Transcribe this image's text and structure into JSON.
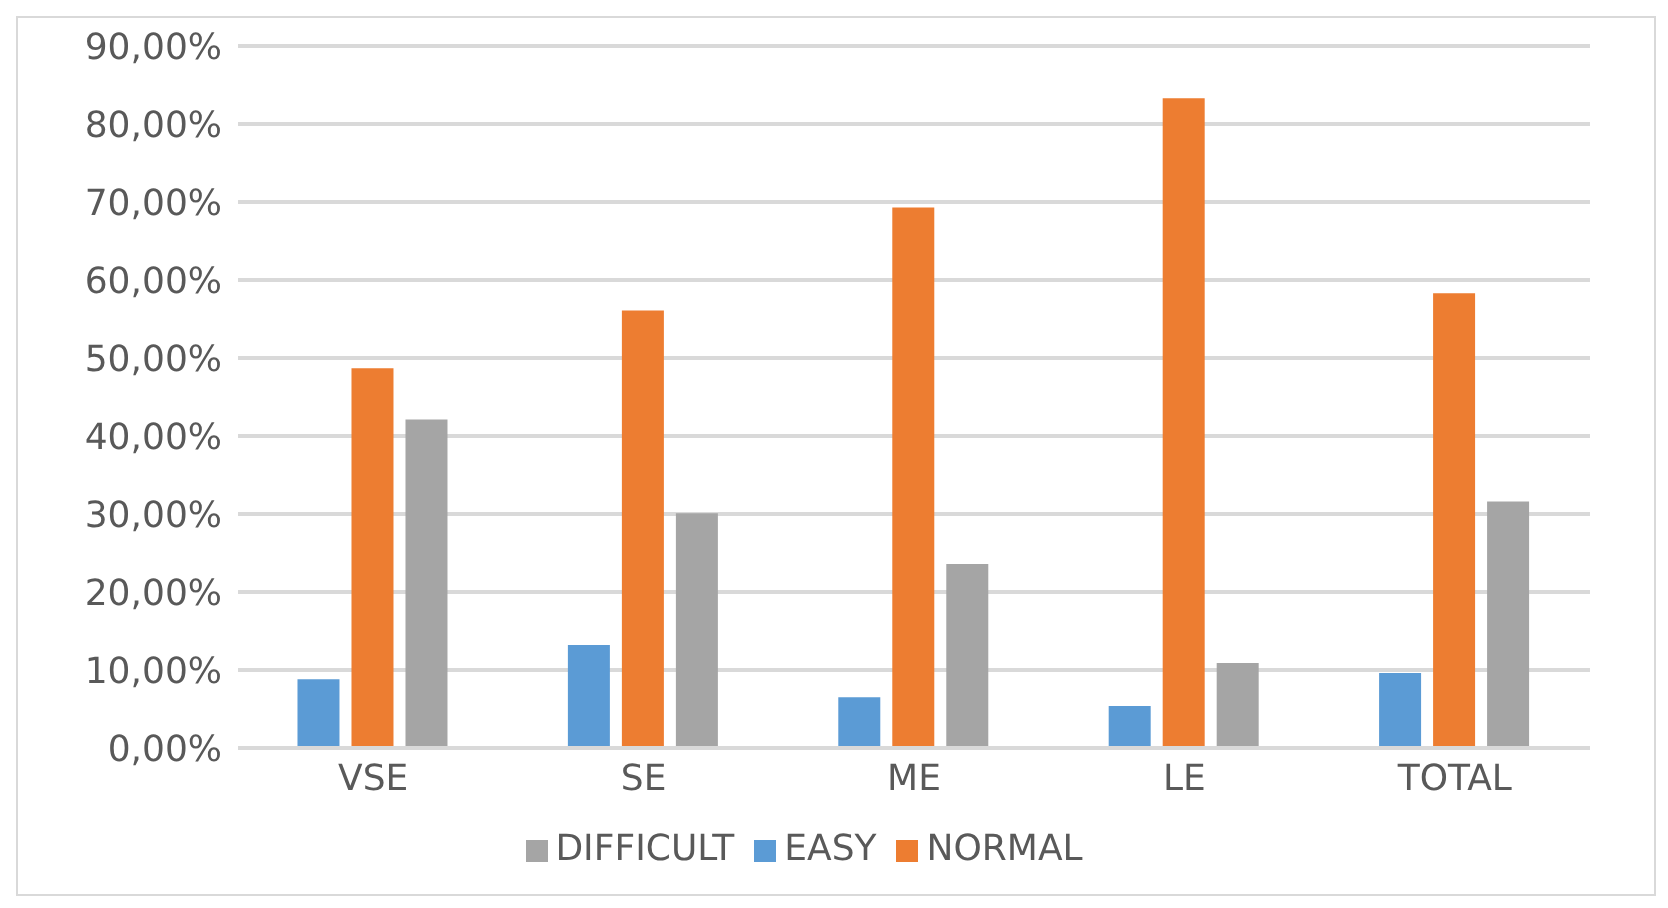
{
  "chart_data": {
    "type": "bar",
    "categories": [
      "VSE",
      "SE",
      "ME",
      "LE",
      "TOTAL"
    ],
    "series": [
      {
        "name": "EASY",
        "color": "#5b9bd5",
        "values": [
          8.8,
          13.2,
          6.5,
          5.4,
          9.6
        ]
      },
      {
        "name": "NORMAL",
        "color": "#ed7d31",
        "values": [
          48.7,
          56.1,
          69.3,
          83.3,
          58.3
        ]
      },
      {
        "name": "DIFFICULT",
        "color": "#a5a5a5",
        "values": [
          42.1,
          30.1,
          23.6,
          10.9,
          31.6
        ]
      }
    ],
    "ylim": [
      0,
      90
    ],
    "yticks": [
      {
        "value": 0,
        "label": "0,00%"
      },
      {
        "value": 10,
        "label": "10,00%"
      },
      {
        "value": 20,
        "label": "20,00%"
      },
      {
        "value": 30,
        "label": "30,00%"
      },
      {
        "value": 40,
        "label": "40,00%"
      },
      {
        "value": 50,
        "label": "50,00%"
      },
      {
        "value": 60,
        "label": "60,00%"
      },
      {
        "value": 70,
        "label": "70,00%"
      },
      {
        "value": 80,
        "label": "80,00%"
      },
      {
        "value": 90,
        "label": "90,00%"
      }
    ],
    "grid": "y",
    "legend": "bottom"
  }
}
